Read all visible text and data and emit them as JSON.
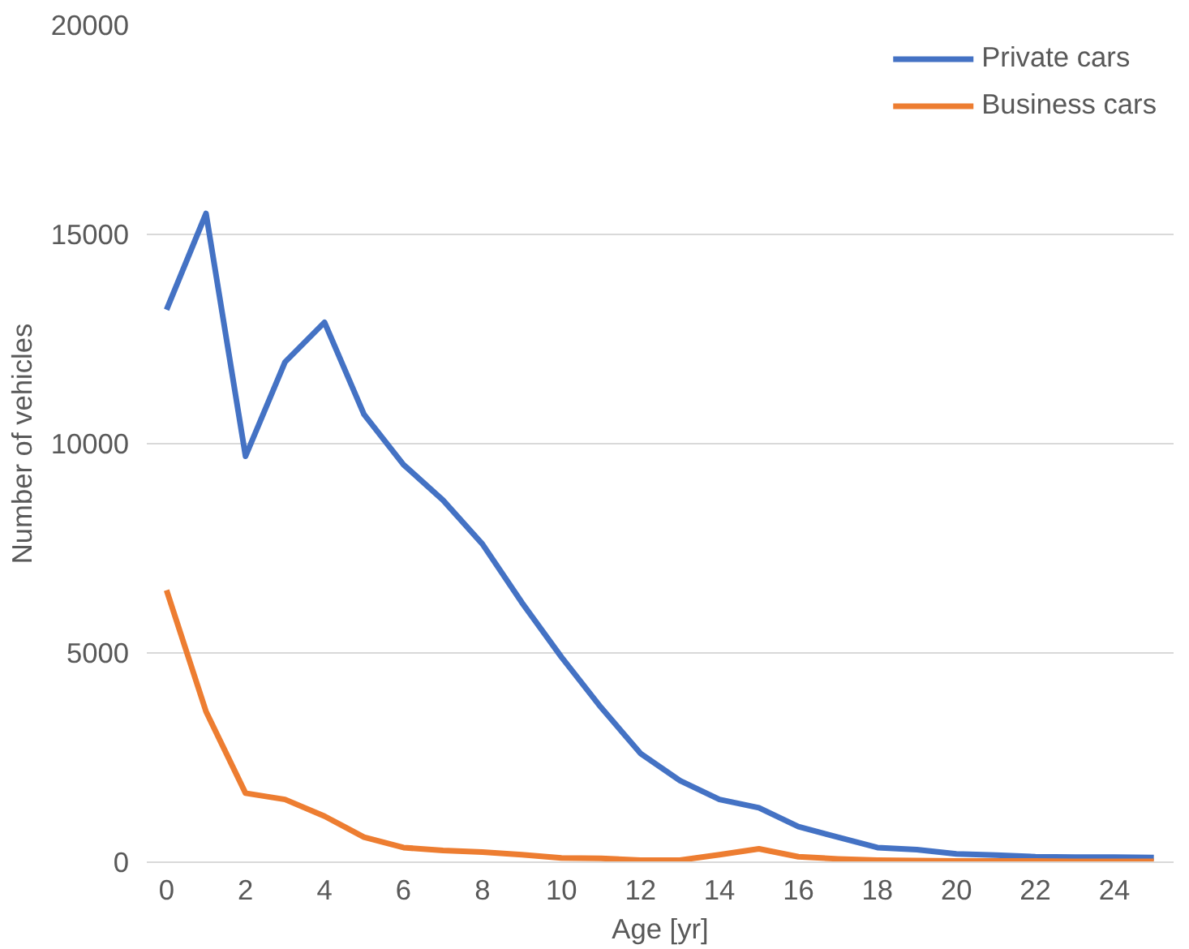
{
  "chart_data": {
    "type": "line",
    "xlabel": "Age [yr]",
    "ylabel": "Number of vehicles",
    "x": [
      0,
      1,
      2,
      3,
      4,
      5,
      6,
      7,
      8,
      9,
      10,
      11,
      12,
      13,
      14,
      15,
      16,
      17,
      18,
      19,
      20,
      21,
      22,
      23,
      24,
      25
    ],
    "series": [
      {
        "name": "Private cars",
        "color": "#4472c4",
        "values": [
          13200,
          15500,
          9700,
          11950,
          12900,
          10700,
          9500,
          8650,
          7600,
          6200,
          4900,
          3700,
          2600,
          1950,
          1500,
          1300,
          850,
          600,
          350,
          300,
          200,
          170,
          130,
          120,
          120,
          110
        ]
      },
      {
        "name": "Business cars",
        "color": "#ed7d31",
        "values": [
          6500,
          3600,
          1650,
          1500,
          1100,
          600,
          350,
          280,
          240,
          180,
          100,
          90,
          50,
          50,
          180,
          320,
          130,
          80,
          50,
          40,
          30,
          30,
          30,
          20,
          20,
          20
        ]
      }
    ],
    "xlim": [
      -0.5,
      25.5
    ],
    "xticks": [
      0,
      2,
      4,
      6,
      8,
      10,
      12,
      14,
      16,
      18,
      20,
      22,
      24
    ],
    "ylim": [
      0,
      20000
    ],
    "yticks": [
      0,
      5000,
      10000,
      15000,
      20000
    ],
    "grid": "y",
    "legend": "top right",
    "marker": "none",
    "line_style": "solid"
  }
}
